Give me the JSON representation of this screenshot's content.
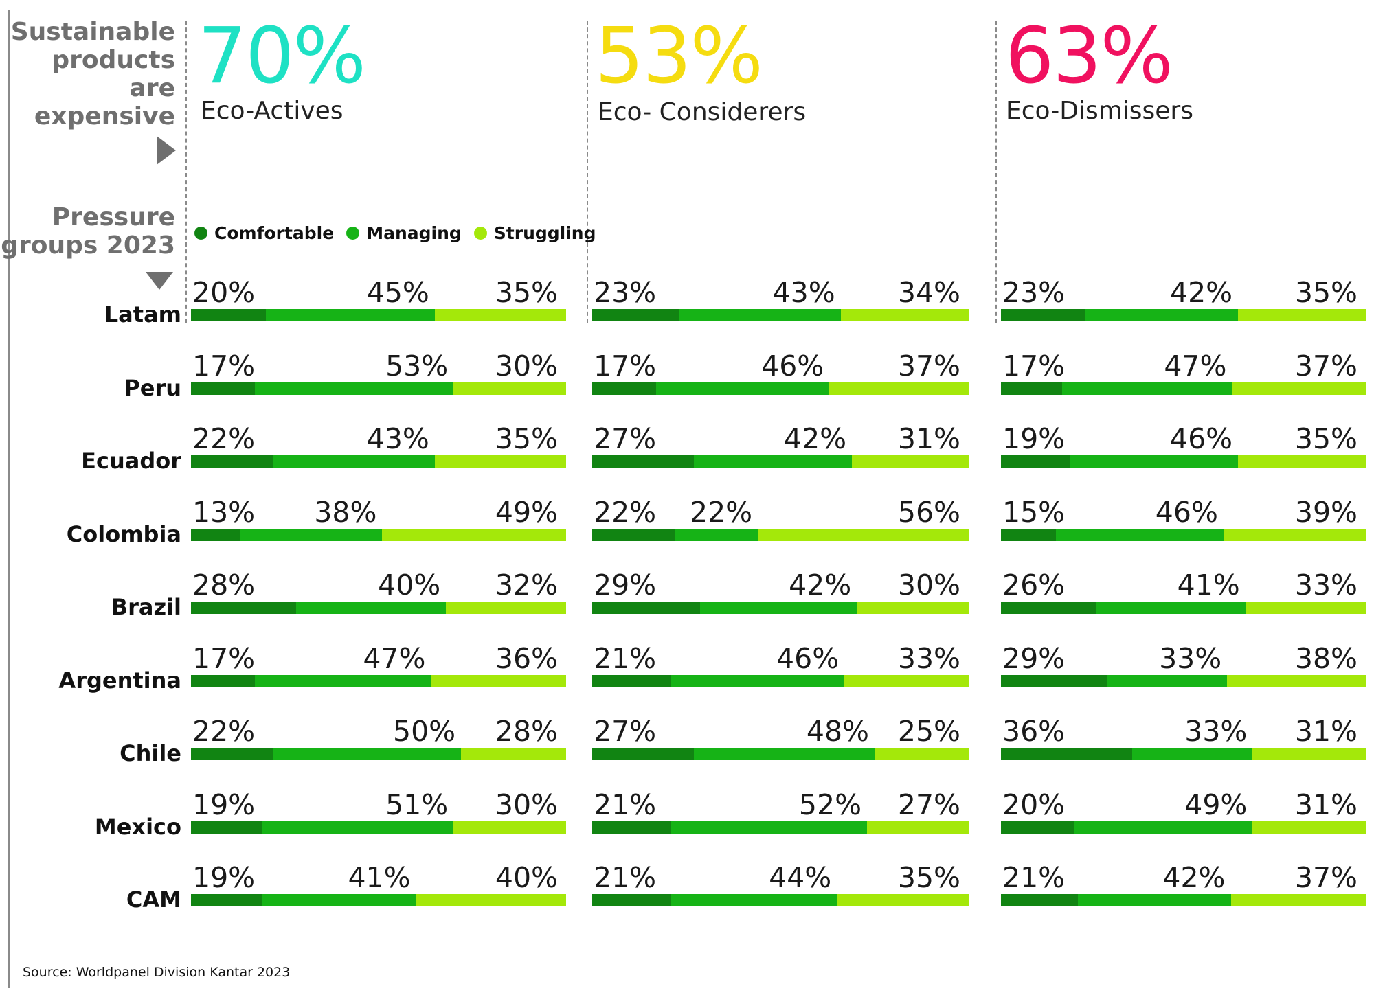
{
  "colors": {
    "comfortable": "#118412",
    "managing": "#16b316",
    "struggling": "#a4e80a",
    "eco_actives": "#1ee1c4",
    "eco_considerers": "#f5dc10",
    "eco_dismissers": "#f0115f",
    "side_text": "#6f6f6f"
  },
  "side": {
    "line1": "Sustainable",
    "line2": "products",
    "line3": "are",
    "line4": "expensive",
    "pressure_line1": "Pressure",
    "pressure_line2": "groups 2023"
  },
  "legend": {
    "comfortable": "Comfortable",
    "managing": "Managing",
    "struggling": "Struggling"
  },
  "source": "Source: Worldpanel Division Kantar 2023",
  "chart_data": {
    "type": "bar",
    "orientation": "horizontal-stacked-100",
    "stack_names": [
      "Comfortable",
      "Managing",
      "Struggling"
    ],
    "categories": [
      "Latam",
      "Peru",
      "Ecuador",
      "Colombia",
      "Brazil",
      "Argentina",
      "Chile",
      "Mexico",
      "CAM"
    ],
    "panels": [
      {
        "headline": "70%",
        "name": "Eco-Actives",
        "series": [
          {
            "name": "Comfortable",
            "values": [
              20,
              17,
              22,
              13,
              28,
              17,
              22,
              19,
              19
            ]
          },
          {
            "name": "Managing",
            "values": [
              45,
              53,
              43,
              38,
              40,
              47,
              50,
              51,
              41
            ]
          },
          {
            "name": "Struggling",
            "values": [
              35,
              30,
              35,
              49,
              32,
              36,
              28,
              30,
              40
            ]
          }
        ]
      },
      {
        "headline": "53%",
        "name": "Eco- Considerers",
        "series": [
          {
            "name": "Comfortable",
            "values": [
              23,
              17,
              27,
              22,
              29,
              21,
              27,
              21,
              21
            ]
          },
          {
            "name": "Managing",
            "values": [
              43,
              46,
              42,
              22,
              42,
              46,
              48,
              52,
              44
            ]
          },
          {
            "name": "Struggling",
            "values": [
              34,
              37,
              31,
              56,
              30,
              33,
              25,
              27,
              35
            ]
          }
        ]
      },
      {
        "headline": "63%",
        "name": "Eco-Dismissers",
        "series": [
          {
            "name": "Comfortable",
            "values": [
              23,
              17,
              19,
              15,
              26,
              29,
              36,
              20,
              21
            ]
          },
          {
            "name": "Managing",
            "values": [
              42,
              47,
              46,
              46,
              41,
              33,
              33,
              49,
              42
            ]
          },
          {
            "name": "Struggling",
            "values": [
              35,
              37,
              35,
              39,
              33,
              38,
              31,
              31,
              37
            ]
          }
        ]
      }
    ]
  }
}
